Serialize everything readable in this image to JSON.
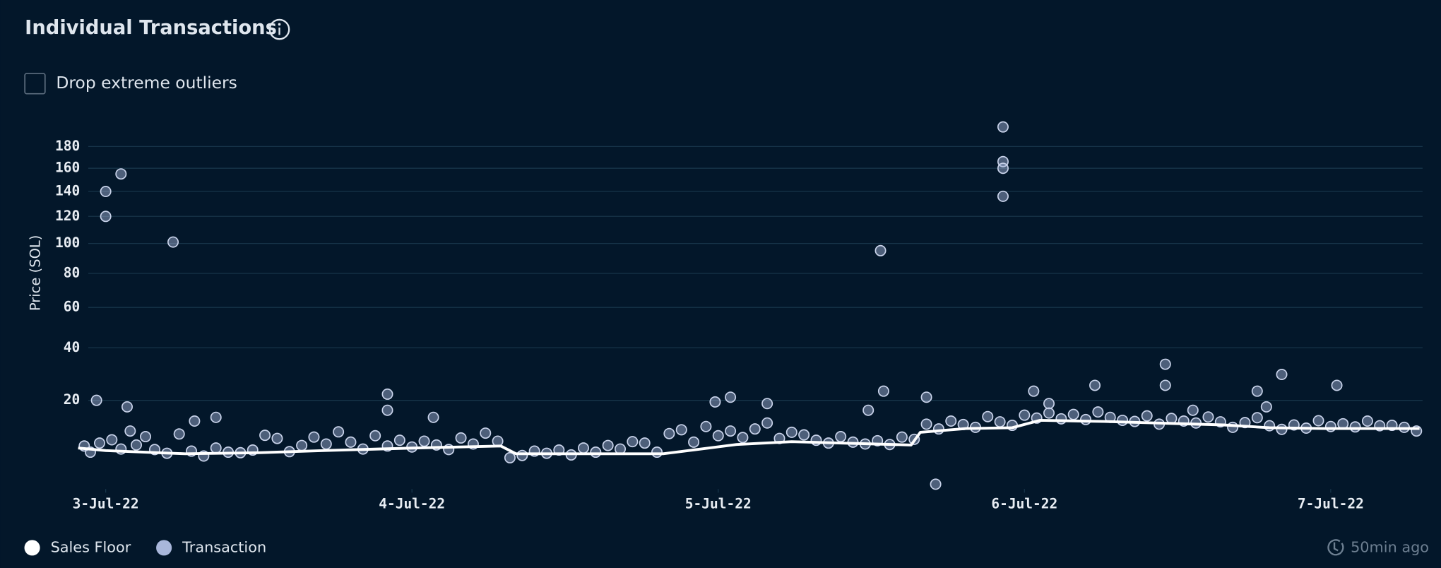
{
  "header": {
    "title": "Individual Transactions"
  },
  "controls": {
    "checkbox_label": "Drop extreme outliers"
  },
  "status": "50min ago",
  "chart_data": {
    "type": "scatter",
    "y_label": "Price (SOL)",
    "y_scale": "sqrt",
    "ylim": [
      2,
      200
    ],
    "yticks": [
      20,
      40,
      60,
      80,
      100,
      120,
      140,
      160,
      180
    ],
    "xlim": [
      2.91,
      7.3
    ],
    "xticks": [
      {
        "value": 3,
        "label": "3-Jul-22"
      },
      {
        "value": 4,
        "label": "4-Jul-22"
      },
      {
        "value": 5,
        "label": "5-Jul-22"
      },
      {
        "value": 6,
        "label": "6-Jul-22"
      },
      {
        "value": 7,
        "label": "7-Jul-22"
      }
    ],
    "grid": true,
    "legend": "bottom-left",
    "series": [
      {
        "name": "Sales Floor",
        "type": "line",
        "color": "#ffffff",
        "x": [
          2.91,
          3.0,
          3.26,
          3.5,
          3.71,
          4.01,
          4.29,
          4.34,
          4.82,
          5.06,
          5.24,
          5.63,
          5.66,
          5.81,
          5.96,
          6.05,
          6.26,
          6.65,
          6.8,
          6.98,
          7.29
        ],
        "values": [
          7.8,
          7.3,
          6.7,
          6.9,
          7.3,
          7.8,
          8.2,
          6.7,
          6.7,
          8.5,
          9.1,
          8.4,
          11.2,
          12.1,
          12.3,
          14.2,
          13.9,
          13.0,
          12.3,
          12.1,
          12.1
        ]
      },
      {
        "name": "Transaction",
        "type": "scatter",
        "color": "#a9b7db",
        "x": [
          3.0,
          3.0,
          3.05,
          3.22,
          2.97,
          3.07,
          3.92,
          3.92,
          4.07,
          5.53,
          5.54,
          5.49,
          5.68,
          5.71,
          5.93,
          5.93,
          5.93,
          5.93,
          6.03,
          6.23,
          6.46,
          6.46,
          6.84,
          7.02,
          6.76,
          4.99,
          5.04,
          5.16,
          6.08,
          6.79,
          3.36,
          3.29,
          6.55,
          2.93,
          2.95,
          2.98,
          3.02,
          3.05,
          3.08,
          3.1,
          3.13,
          3.16,
          3.2,
          3.24,
          3.28,
          3.32,
          3.36,
          3.4,
          3.44,
          3.48,
          3.52,
          3.56,
          3.6,
          3.64,
          3.68,
          3.72,
          3.76,
          3.8,
          3.84,
          3.88,
          3.92,
          3.96,
          4.0,
          4.04,
          4.08,
          4.12,
          4.16,
          4.2,
          4.24,
          4.28,
          4.32,
          4.36,
          4.4,
          4.44,
          4.48,
          4.52,
          4.56,
          4.6,
          4.64,
          4.68,
          4.72,
          4.76,
          4.8,
          4.84,
          4.88,
          4.92,
          4.96,
          5.0,
          5.04,
          5.08,
          5.12,
          5.16,
          5.2,
          5.24,
          5.28,
          5.32,
          5.36,
          5.4,
          5.44,
          5.48,
          5.52,
          5.56,
          5.6,
          5.64,
          5.68,
          5.72,
          5.76,
          5.8,
          5.84,
          5.88,
          5.92,
          5.96,
          6.0,
          6.04,
          6.08,
          6.12,
          6.16,
          6.2,
          6.24,
          6.28,
          6.32,
          6.36,
          6.4,
          6.44,
          6.48,
          6.52,
          6.56,
          6.6,
          6.64,
          6.68,
          6.72,
          6.76,
          6.8,
          6.84,
          6.88,
          6.92,
          6.96,
          7.0,
          7.04,
          7.08,
          7.12,
          7.16,
          7.2,
          7.24,
          7.28
        ],
        "values": [
          140,
          120,
          155,
          101,
          20,
          18,
          22,
          17,
          15,
          95,
          23,
          17,
          21,
          2.3,
          199,
          166,
          160,
          136,
          23,
          25,
          33,
          25,
          29,
          25,
          23,
          19.5,
          21,
          19,
          19,
          18,
          15,
          14,
          17,
          8.2,
          7.0,
          8.8,
          9.5,
          7.6,
          11.5,
          8.4,
          10.2,
          7.5,
          6.8,
          10.8,
          7.2,
          6.3,
          7.8,
          7.0,
          6.9,
          7.4,
          10.5,
          9.8,
          7.1,
          8.3,
          10.1,
          8.6,
          11.3,
          9.0,
          7.6,
          10.4,
          8.2,
          9.4,
          8.0,
          9.2,
          8.4,
          7.5,
          9.9,
          8.6,
          11.0,
          9.2,
          6.0,
          6.4,
          7.2,
          6.8,
          7.4,
          6.5,
          7.8,
          7.0,
          8.3,
          7.6,
          9.1,
          8.8,
          7.0,
          10.9,
          11.8,
          9.0,
          12.6,
          10.4,
          11.5,
          10.0,
          12.0,
          13.5,
          9.8,
          11.2,
          10.6,
          9.4,
          8.8,
          10.2,
          9.0,
          8.6,
          9.3,
          8.5,
          10.1,
          9.6,
          13.2,
          12.0,
          14.0,
          13.1,
          12.4,
          15.2,
          13.8,
          12.9,
          15.6,
          14.8,
          16.2,
          14.6,
          15.8,
          14.4,
          16.5,
          15.0,
          14.2,
          13.9,
          15.4,
          13.2,
          14.7,
          14.0,
          13.5,
          15.1,
          13.8,
          12.4,
          13.6,
          14.9,
          12.8,
          11.9,
          13.0,
          12.2,
          14.1,
          12.6,
          13.3,
          12.5,
          14.0,
          12.8,
          12.9,
          12.4,
          11.5
        ]
      }
    ]
  }
}
